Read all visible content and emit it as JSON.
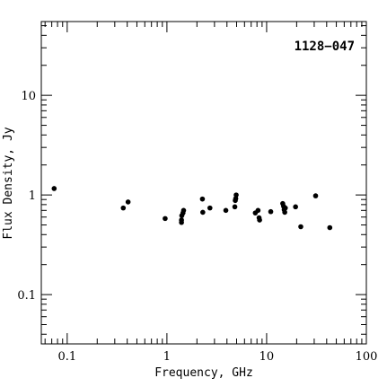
{
  "chart_data": {
    "type": "scatter",
    "title": "1128−047",
    "xlabel": "Frequency, GHz",
    "ylabel": "Flux Density, Jy",
    "xscale": "log",
    "yscale": "log",
    "xlim": [
      0.055,
      100
    ],
    "ylim": [
      0.032,
      55
    ],
    "grid": false,
    "legend": "none",
    "x_ticks": [
      {
        "value": 0.1,
        "label": "0.1"
      },
      {
        "value": 1,
        "label": "1"
      },
      {
        "value": 10,
        "label": "10"
      },
      {
        "value": 100,
        "label": "100"
      }
    ],
    "y_ticks": [
      {
        "value": 0.1,
        "label": "0.1"
      },
      {
        "value": 1,
        "label": "1"
      },
      {
        "value": 10,
        "label": "10"
      }
    ],
    "series": [
      {
        "points": [
          {
            "x": 0.074,
            "y": 1.16
          },
          {
            "x": 0.365,
            "y": 0.74
          },
          {
            "x": 0.408,
            "y": 0.85
          },
          {
            "x": 0.96,
            "y": 0.58
          },
          {
            "x": 1.4,
            "y": 0.53
          },
          {
            "x": 1.4,
            "y": 0.56
          },
          {
            "x": 1.41,
            "y": 0.62
          },
          {
            "x": 1.45,
            "y": 0.66
          },
          {
            "x": 1.47,
            "y": 0.7
          },
          {
            "x": 2.27,
            "y": 0.91
          },
          {
            "x": 2.29,
            "y": 0.67
          },
          {
            "x": 2.7,
            "y": 0.74
          },
          {
            "x": 3.9,
            "y": 0.7
          },
          {
            "x": 4.8,
            "y": 0.76
          },
          {
            "x": 4.85,
            "y": 0.88
          },
          {
            "x": 4.9,
            "y": 0.92
          },
          {
            "x": 4.95,
            "y": 1.0
          },
          {
            "x": 7.7,
            "y": 0.66
          },
          {
            "x": 8.2,
            "y": 0.7
          },
          {
            "x": 8.4,
            "y": 0.59
          },
          {
            "x": 8.5,
            "y": 0.56
          },
          {
            "x": 11.0,
            "y": 0.68
          },
          {
            "x": 14.5,
            "y": 0.82
          },
          {
            "x": 14.8,
            "y": 0.77
          },
          {
            "x": 15.0,
            "y": 0.71
          },
          {
            "x": 15.2,
            "y": 0.67
          },
          {
            "x": 15.4,
            "y": 0.74
          },
          {
            "x": 19.5,
            "y": 0.76
          },
          {
            "x": 22.0,
            "y": 0.48
          },
          {
            "x": 31.0,
            "y": 0.98
          },
          {
            "x": 43.0,
            "y": 0.47
          }
        ]
      }
    ]
  }
}
